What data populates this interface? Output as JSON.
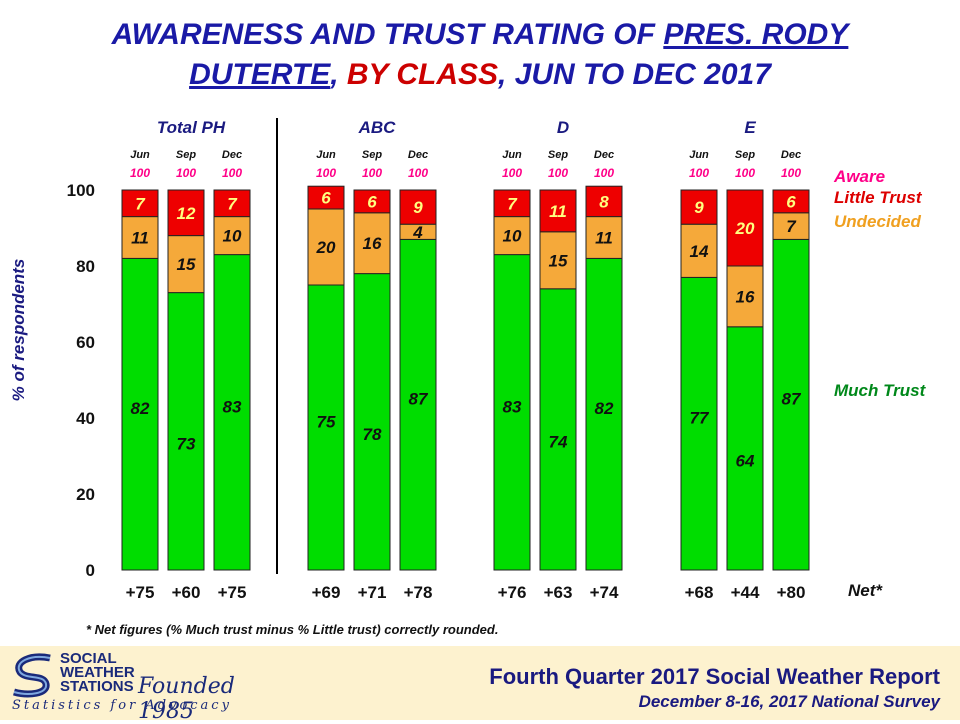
{
  "title": {
    "part1": "AWARENESS AND TRUST RATING OF ",
    "part2": "PRES. RODY",
    "part3": "DUTERTE",
    "part4": ", ",
    "part5": "BY CLASS",
    "part6": ", JUN TO DEC 2017"
  },
  "colors": {
    "much_trust": "#00dd00",
    "undecided": "#f5a93a",
    "little_trust": "#ee0000",
    "title_blue": "#1a1aa6",
    "aware_label": "#ff0088",
    "little_label": "#dd0000",
    "undecided_label": "#f0a020",
    "much_label": "#00881a"
  },
  "chart_data": {
    "type": "bar",
    "stacked": true,
    "ylabel": "% of respondents",
    "ylim": [
      0,
      100
    ],
    "yticks": [
      "0",
      "20",
      "40",
      "60",
      "80",
      "100"
    ],
    "groups": [
      {
        "name": "Total PH",
        "bars": [
          {
            "month": "Jun",
            "aware": "100",
            "much": 82,
            "undecided": 11,
            "little": 7,
            "net": "+75"
          },
          {
            "month": "Sep",
            "aware": "100",
            "much": 73,
            "undecided": 15,
            "little": 12,
            "net": "+60"
          },
          {
            "month": "Dec",
            "aware": "100",
            "much": 83,
            "undecided": 10,
            "little": 7,
            "net": "+75"
          }
        ]
      },
      {
        "name": "ABC",
        "bars": [
          {
            "month": "Jun",
            "aware": "100",
            "much": 75,
            "undecided": 20,
            "little": 6,
            "net": "+69"
          },
          {
            "month": "Sep",
            "aware": "100",
            "much": 78,
            "undecided": 16,
            "little": 6,
            "net": "+71"
          },
          {
            "month": "Dec",
            "aware": "100",
            "much": 87,
            "undecided": 4,
            "little": 9,
            "net": "+78"
          }
        ]
      },
      {
        "name": "D",
        "bars": [
          {
            "month": "Jun",
            "aware": "100",
            "much": 83,
            "undecided": 10,
            "little": 7,
            "net": "+76"
          },
          {
            "month": "Sep",
            "aware": "100",
            "much": 74,
            "undecided": 15,
            "little": 11,
            "net": "+63"
          },
          {
            "month": "Dec",
            "aware": "100",
            "much": 82,
            "undecided": 11,
            "little": 8,
            "net": "+74"
          }
        ]
      },
      {
        "name": "E",
        "bars": [
          {
            "month": "Jun",
            "aware": "100",
            "much": 77,
            "undecided": 14,
            "little": 9,
            "net": "+68"
          },
          {
            "month": "Sep",
            "aware": "100",
            "much": 64,
            "undecided": 16,
            "little": 20,
            "net": "+44"
          },
          {
            "month": "Dec",
            "aware": "100",
            "much": 87,
            "undecided": 7,
            "little": 6,
            "net": "+80"
          }
        ]
      }
    ],
    "legend": {
      "aware": "Aware",
      "little": "Little Trust",
      "undecided": "Undecided",
      "much": "Much Trust",
      "placement": "right"
    },
    "net_label": "Net*",
    "footnote": "* Net figures (% Much trust minus % Little trust) correctly rounded."
  },
  "footer": {
    "org_line1": "SOCIAL",
    "org_line2": "WEATHER",
    "org_line3": "STATIONS",
    "founded": "Founded 1985",
    "tagline": "Statistics for Advocacy",
    "report": "Fourth Quarter 2017 Social Weather Report",
    "survey": "December 8-16, 2017 National Survey"
  }
}
